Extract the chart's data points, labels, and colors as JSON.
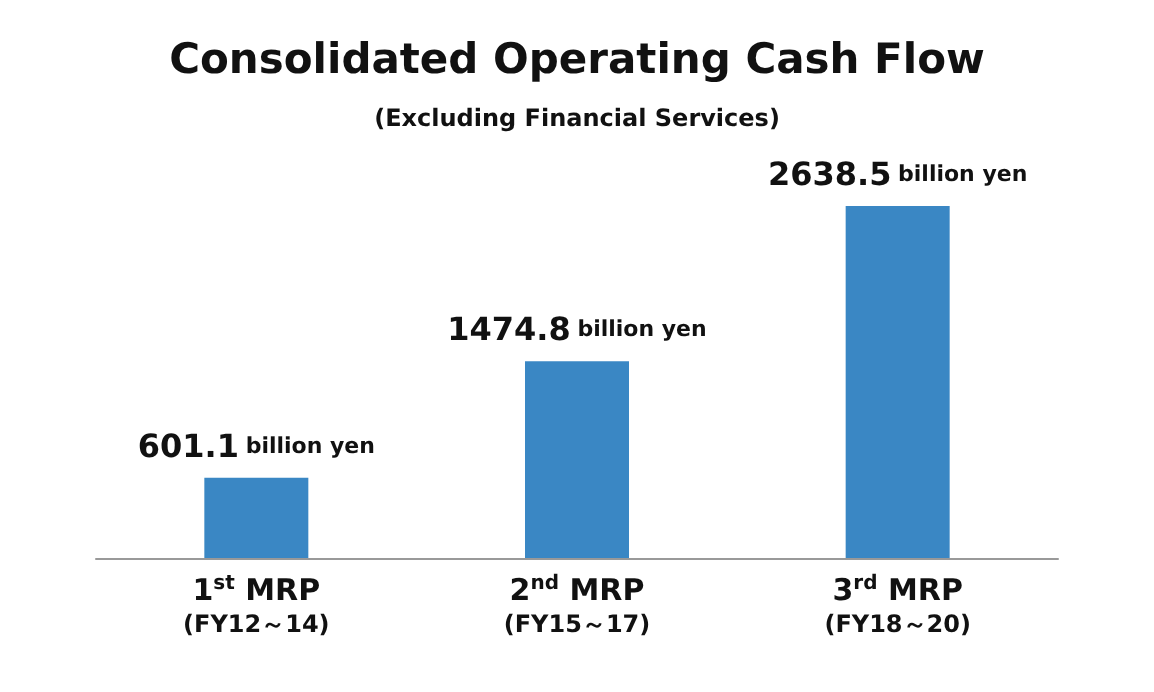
{
  "chart_data": {
    "type": "bar",
    "title": "Consolidated Operating Cash Flow",
    "subtitle": "(Excluding Financial Services)",
    "categories": [
      "1$^{st}$ MRP\n(FY12～14)",
      "2$^{nd}$ MRP\n(FY15～17)",
      "3$^{rd}$ MRP\n(FY18～20)"
    ],
    "values": [
      601.1,
      1474.8,
      2638.5
    ],
    "value_labels": [
      "601.1 billion yen",
      "1474.8 billion yen",
      "2638.5 billion yen"
    ],
    "color": "#3a87c4"
  }
}
